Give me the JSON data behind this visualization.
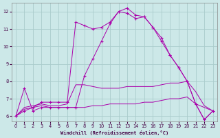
{
  "xlabel": "Windchill (Refroidissement éolien,°C)",
  "background_color": "#cce8e8",
  "grid_color": "#aacccc",
  "line_color": "#aa00aa",
  "xlim": [
    -0.5,
    23.5
  ],
  "ylim": [
    5.7,
    12.5
  ],
  "xticks": [
    0,
    1,
    2,
    3,
    4,
    5,
    6,
    7,
    8,
    9,
    10,
    11,
    12,
    13,
    14,
    15,
    16,
    17,
    18,
    19,
    20,
    21,
    22,
    23
  ],
  "yticks": [
    6,
    7,
    8,
    9,
    10,
    11,
    12
  ],
  "hours": [
    0,
    1,
    2,
    3,
    4,
    5,
    6,
    7,
    8,
    9,
    10,
    11,
    12,
    13,
    14,
    15,
    16,
    17,
    18,
    19,
    20,
    21,
    22,
    23
  ],
  "line_main_marked": [
    6.0,
    7.6,
    6.3,
    6.5,
    6.5,
    6.5,
    6.5,
    6.5,
    8.3,
    9.3,
    10.3,
    11.3,
    12.0,
    12.2,
    11.8,
    11.7,
    11.1,
    10.5,
    9.5,
    8.8,
    8.0,
    6.7,
    5.8,
    6.3
  ],
  "line_upper_marked": [
    6.0,
    6.3,
    6.5,
    6.8,
    6.8,
    6.8,
    6.8,
    11.4,
    11.2,
    11.0,
    11.1,
    11.4,
    12.0,
    11.9,
    11.6,
    11.7,
    11.1,
    10.3,
    9.5,
    8.8,
    8.0,
    6.7,
    5.8,
    6.3
  ],
  "line_upper_flat": [
    6.0,
    6.5,
    6.6,
    6.7,
    6.6,
    6.6,
    6.7,
    7.8,
    7.8,
    7.7,
    7.6,
    7.6,
    7.6,
    7.7,
    7.7,
    7.7,
    7.7,
    7.8,
    7.9,
    7.9,
    8.0,
    7.4,
    6.6,
    6.3
  ],
  "line_lower_flat": [
    6.0,
    6.4,
    6.5,
    6.6,
    6.5,
    6.5,
    6.5,
    6.5,
    6.5,
    6.6,
    6.6,
    6.7,
    6.7,
    6.7,
    6.7,
    6.8,
    6.8,
    6.9,
    7.0,
    7.0,
    7.1,
    6.7,
    6.5,
    6.3
  ]
}
